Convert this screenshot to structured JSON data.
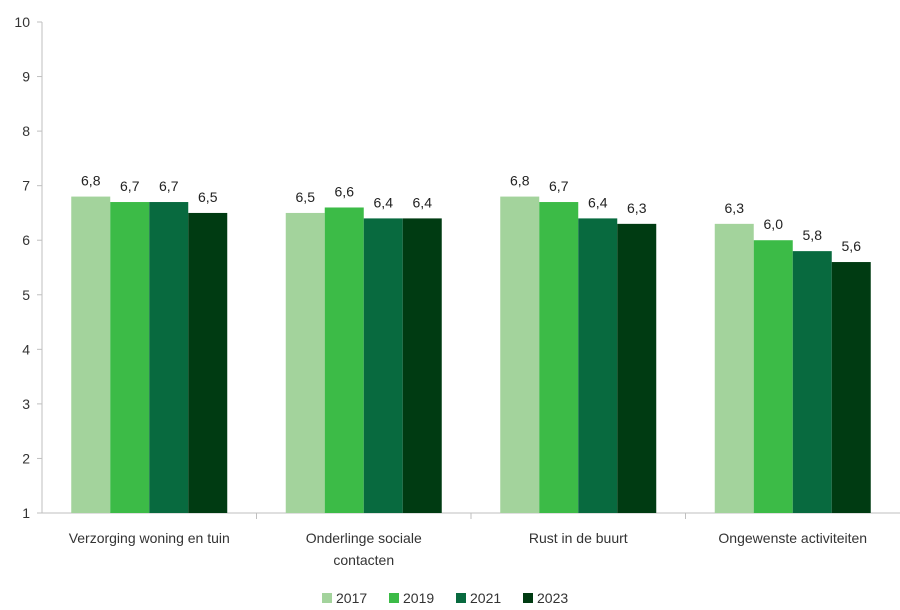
{
  "chart_data": {
    "type": "bar",
    "categories": [
      [
        "Verzorging woning en tuin"
      ],
      [
        "Onderlinge sociale",
        "contacten"
      ],
      [
        "Rust in de buurt"
      ],
      [
        "Ongewenste activiteiten"
      ]
    ],
    "series": [
      {
        "name": "2017",
        "color": "#a3d39c",
        "values": [
          6.8,
          6.5,
          6.8,
          6.3
        ],
        "labels": [
          "6,8",
          "6,5",
          "6,8",
          "6,3"
        ]
      },
      {
        "name": "2019",
        "color": "#3cbb47",
        "values": [
          6.7,
          6.6,
          6.7,
          6.0
        ],
        "labels": [
          "6,7",
          "6,6",
          "6,7",
          "6,0"
        ]
      },
      {
        "name": "2021",
        "color": "#086a3f",
        "values": [
          6.7,
          6.4,
          6.4,
          5.8
        ],
        "labels": [
          "6,7",
          "6,4",
          "6,4",
          "5,8"
        ]
      },
      {
        "name": "2023",
        "color": "#003b12",
        "values": [
          6.5,
          6.4,
          6.3,
          5.6
        ],
        "labels": [
          "6,5",
          "6,4",
          "6,3",
          "5,6"
        ]
      }
    ],
    "yticks": [
      "1",
      "2",
      "3",
      "4",
      "5",
      "6",
      "7",
      "8",
      "9",
      "10"
    ],
    "ylim": [
      1,
      10
    ],
    "grid": false,
    "legend_position": "bottom"
  }
}
